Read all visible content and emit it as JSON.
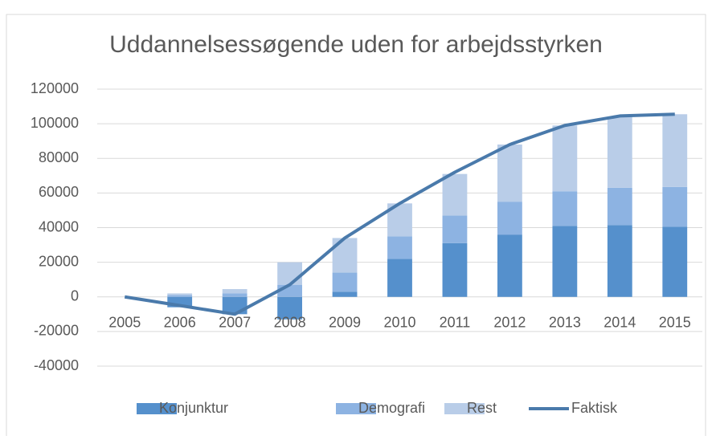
{
  "chart_data": {
    "type": "bar+line",
    "title": "Uddannelsessøgende uden for arbejdsstyrken",
    "categories": [
      "2005",
      "2006",
      "2007",
      "2008",
      "2009",
      "2010",
      "2011",
      "2012",
      "2013",
      "2014",
      "2015"
    ],
    "series": [
      {
        "name": "Konjunktur",
        "type": "bar",
        "color": "#5590cc",
        "values": [
          0,
          -6000,
          -10000,
          -13000,
          3000,
          22000,
          31000,
          36000,
          41000,
          41500,
          40500
        ]
      },
      {
        "name": "Demografi",
        "type": "bar",
        "color": "#8db3e2",
        "values": [
          0,
          1000,
          2000,
          7000,
          11000,
          13000,
          16000,
          19000,
          20000,
          21500,
          23000
        ]
      },
      {
        "name": "Rest",
        "type": "bar",
        "color": "#b9cde8",
        "values": [
          0,
          1000,
          2500,
          13000,
          20000,
          19000,
          24000,
          33000,
          38000,
          41000,
          42000
        ]
      },
      {
        "name": "Faktisk",
        "type": "line",
        "color": "#4a7aab",
        "values": [
          0,
          -5000,
          -10000,
          7000,
          34000,
          54000,
          72000,
          88000,
          99000,
          104500,
          105500
        ]
      }
    ],
    "ylim": [
      -40000,
      120000
    ],
    "yticks": [
      -40000,
      -20000,
      0,
      20000,
      40000,
      60000,
      80000,
      100000,
      120000
    ],
    "grid": true,
    "legend": "bottom"
  }
}
